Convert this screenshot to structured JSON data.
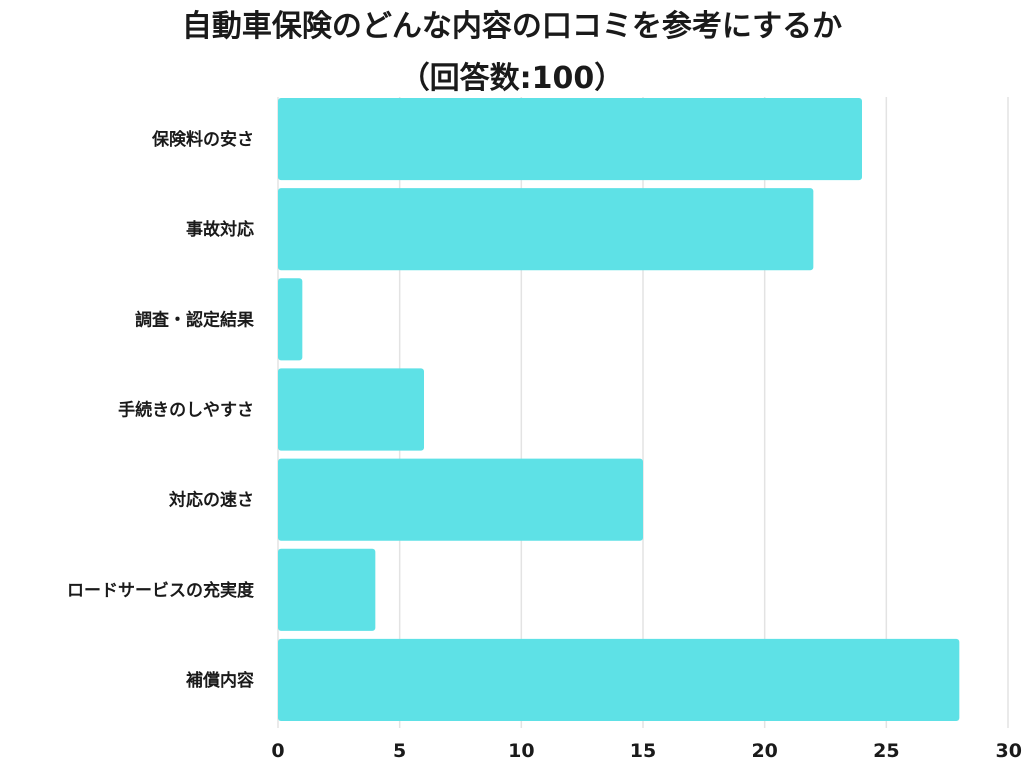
{
  "chart_data": {
    "type": "bar",
    "orientation": "horizontal",
    "title": "自動車保険のどんな内容の口コミを参考にするか",
    "subtitle": "（回答数:100）",
    "categories": [
      "保険料の安さ",
      "事故対応",
      "調査・認定結果",
      "手続きのしやすさ",
      "対応の速さ",
      "ロードサービスの充実度",
      "補償内容"
    ],
    "values": [
      24,
      22,
      1,
      6,
      15,
      4,
      28
    ],
    "xlim": [
      0,
      30
    ],
    "xticks": [
      0,
      5,
      10,
      15,
      20,
      25,
      30
    ],
    "xlabel": "",
    "ylabel": "",
    "grid": "vertical",
    "bar_color": "#5ee1e6",
    "grid_color": "#e3e3e3"
  }
}
